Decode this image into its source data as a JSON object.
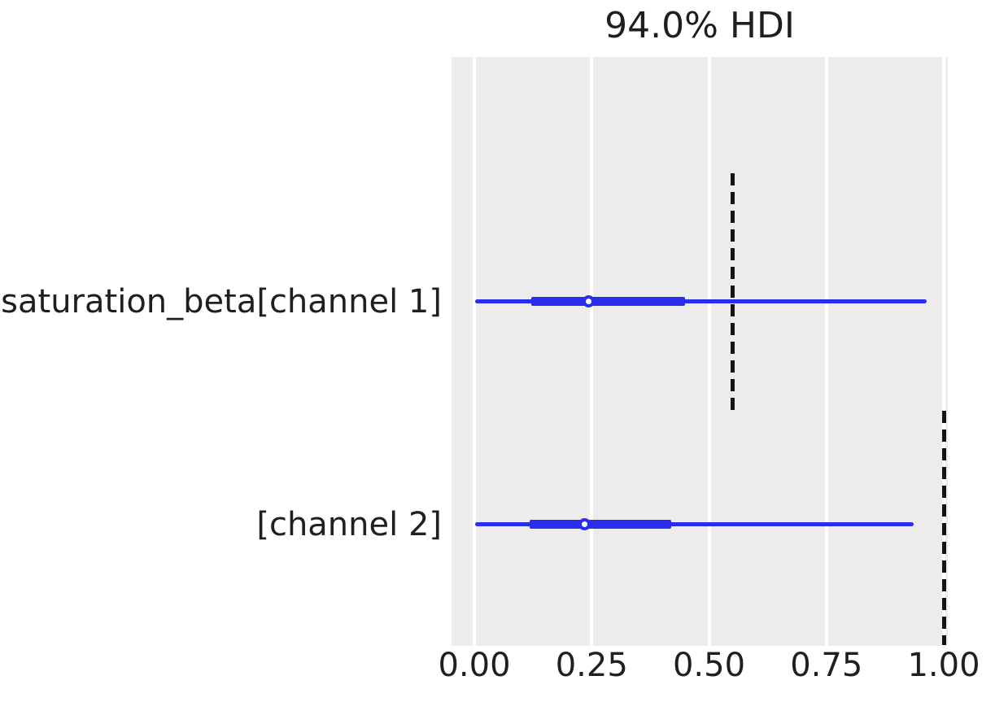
{
  "title": "94.0% HDI",
  "chart_data": {
    "type": "forest",
    "title": "94.0% HDI",
    "hdi_probability": 0.94,
    "xlabel": "",
    "xlim": [
      -0.049,
      1.009
    ],
    "xticks": [
      0.0,
      0.25,
      0.5,
      0.75,
      1.0
    ],
    "xtick_labels": [
      "0.00",
      "0.25",
      "0.50",
      "0.75",
      "1.00"
    ],
    "grid": "vertical white gridlines on light gray panel, no horizontal grid",
    "legend": "none",
    "rows": [
      {
        "label": "saturation_beta[channel 1]",
        "hdi_lower": 0.002,
        "iqr_lower": 0.121,
        "median": 0.244,
        "iqr_upper": 0.449,
        "hdi_upper": 0.964,
        "ref_line": 0.55
      },
      {
        "label": "[channel 2]",
        "hdi_lower": 0.002,
        "iqr_lower": 0.118,
        "median": 0.234,
        "iqr_upper": 0.419,
        "hdi_upper": 0.936,
        "ref_line": 1.0
      }
    ],
    "colors": {
      "interval": "#2a2eec",
      "ref_line": "#141414",
      "plot_bg": "#ececec",
      "grid": "#ffffff",
      "text": "#1f1f1f",
      "figure_bg": "#ffffff"
    }
  }
}
